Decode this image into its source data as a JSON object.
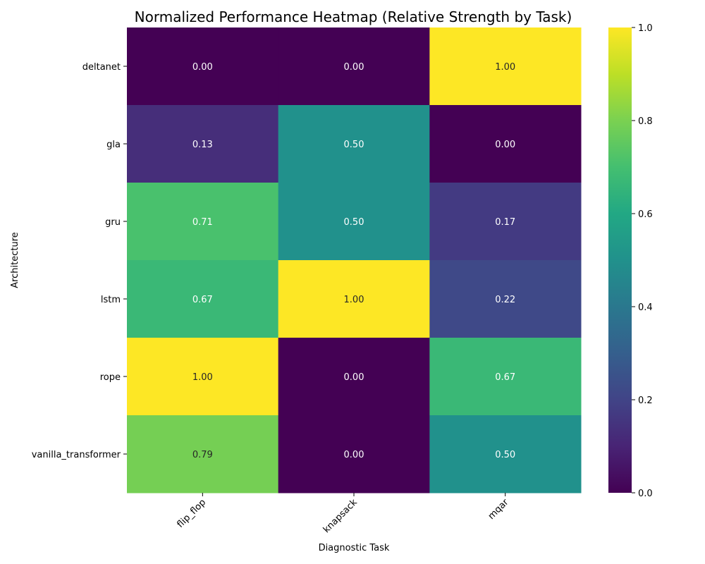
{
  "chart_data": {
    "type": "heatmap",
    "title": "Normalized Performance Heatmap (Relative Strength by Task)",
    "xlabel": "Diagnostic Task",
    "ylabel": "Architecture",
    "x_categories": [
      "flip_flop",
      "knapsack",
      "mqar"
    ],
    "y_categories": [
      "deltanet",
      "gla",
      "gru",
      "lstm",
      "rope",
      "vanilla_transformer"
    ],
    "values": [
      [
        0.0,
        0.0,
        1.0
      ],
      [
        0.13,
        0.5,
        0.0
      ],
      [
        0.71,
        0.5,
        0.17
      ],
      [
        0.67,
        1.0,
        0.22
      ],
      [
        1.0,
        0.0,
        0.67
      ],
      [
        0.79,
        0.0,
        0.5
      ]
    ],
    "colormap": "viridis",
    "value_range": [
      0,
      1
    ],
    "colorbar_ticks": [
      "0.0",
      "0.2",
      "0.4",
      "0.6",
      "0.8",
      "1.0"
    ],
    "grid": false,
    "legend": "colorbar-right"
  }
}
